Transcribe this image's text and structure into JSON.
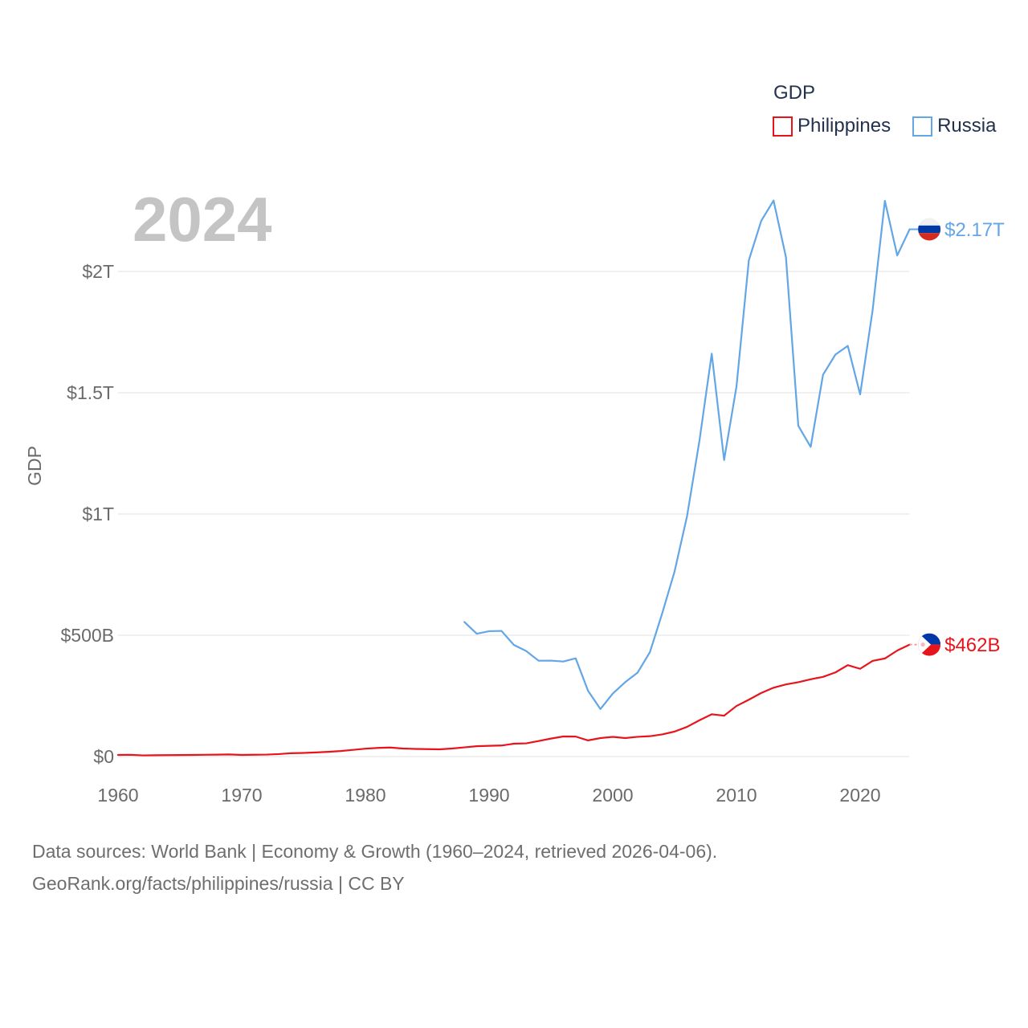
{
  "chart_data": {
    "type": "line",
    "year_label": "2024",
    "ylabel": "GDP",
    "legend_title": "GDP",
    "xlim": [
      1960,
      2024
    ],
    "ylim": [
      0,
      2300
    ],
    "x_ticks": [
      {
        "value": 1960,
        "label": "1960"
      },
      {
        "value": 1970,
        "label": "1970"
      },
      {
        "value": 1980,
        "label": "1980"
      },
      {
        "value": 1990,
        "label": "1990"
      },
      {
        "value": 2000,
        "label": "2000"
      },
      {
        "value": 2010,
        "label": "2010"
      },
      {
        "value": 2020,
        "label": "2020"
      }
    ],
    "y_ticks": [
      {
        "value": 0,
        "label": "$0"
      },
      {
        "value": 500,
        "label": "$500B"
      },
      {
        "value": 1000,
        "label": "$1T"
      },
      {
        "value": 1500,
        "label": "$1.5T"
      },
      {
        "value": 2000,
        "label": "$2T"
      }
    ],
    "series": [
      {
        "name": "Philippines",
        "color": "#e8141c",
        "flag_icon": "philippines-flag-icon",
        "end_label": "$462B",
        "x": [
          1960,
          1961,
          1962,
          1963,
          1964,
          1965,
          1966,
          1967,
          1968,
          1969,
          1970,
          1971,
          1972,
          1973,
          1974,
          1975,
          1976,
          1977,
          1978,
          1979,
          1980,
          1981,
          1982,
          1983,
          1984,
          1985,
          1986,
          1987,
          1988,
          1989,
          1990,
          1991,
          1992,
          1993,
          1994,
          1995,
          1996,
          1997,
          1998,
          1999,
          2000,
          2001,
          2002,
          2003,
          2004,
          2005,
          2006,
          2007,
          2008,
          2009,
          2010,
          2011,
          2012,
          2013,
          2014,
          2015,
          2016,
          2017,
          2018,
          2019,
          2020,
          2021,
          2022,
          2023,
          2024
        ],
        "values_bn": [
          6.68,
          7.27,
          4.74,
          5.25,
          5.69,
          6.17,
          6.67,
          7.28,
          7.91,
          8.73,
          6.69,
          7.42,
          8.01,
          10.08,
          13.78,
          14.98,
          17.1,
          19.51,
          22.7,
          27.53,
          32.45,
          35.65,
          37.14,
          33.21,
          31.41,
          30.73,
          29.87,
          33.2,
          37.89,
          42.58,
          44.31,
          45.42,
          52.98,
          54.37,
          64.08,
          74.12,
          82.85,
          82.34,
          66.6,
          76.16,
          81.03,
          76.26,
          81.36,
          83.91,
          91.37,
          103.07,
          122.21,
          149.36,
          174.2,
          168.49,
          208.37,
          234.22,
          261.92,
          283.9,
          297.48,
          306.45,
          318.63,
          328.48,
          346.84,
          376.82,
          361.75,
          394.09,
          404.35,
          437.06,
          461.62
        ]
      },
      {
        "name": "Russia",
        "color": "#62a6e6",
        "flag_icon": "russia-flag-icon",
        "end_label": "$2.17T",
        "x": [
          1988,
          1989,
          1990,
          1991,
          1992,
          1993,
          1994,
          1995,
          1996,
          1997,
          1998,
          1999,
          2000,
          2001,
          2002,
          2003,
          2004,
          2005,
          2006,
          2007,
          2008,
          2009,
          2010,
          2011,
          2012,
          2013,
          2014,
          2015,
          2016,
          2017,
          2018,
          2019,
          2020,
          2021,
          2022,
          2023,
          2024
        ],
        "values_bn": [
          554.71,
          506.5,
          516.81,
          517.96,
          460.29,
          435.08,
          395.08,
          395.53,
          391.72,
          404.93,
          270.96,
          195.91,
          259.71,
          306.6,
          345.47,
          430.35,
          591.02,
          764.02,
          989.93,
          1299.71,
          1660.85,
          1222.64,
          1524.92,
          2045.93,
          2208.29,
          2292.47,
          2059.24,
          1363.48,
          1276.79,
          1574.2,
          1657.33,
          1693.11,
          1493.08,
          1836.89,
          2291.1,
          2066.0,
          2173.84
        ]
      }
    ]
  },
  "footer": {
    "line1": "Data sources: World Bank | Economy & Growth (1960–2024, retrieved 2026-04-06).",
    "line2": "GeoRank.org/facts/philippines/russia | CC BY"
  }
}
